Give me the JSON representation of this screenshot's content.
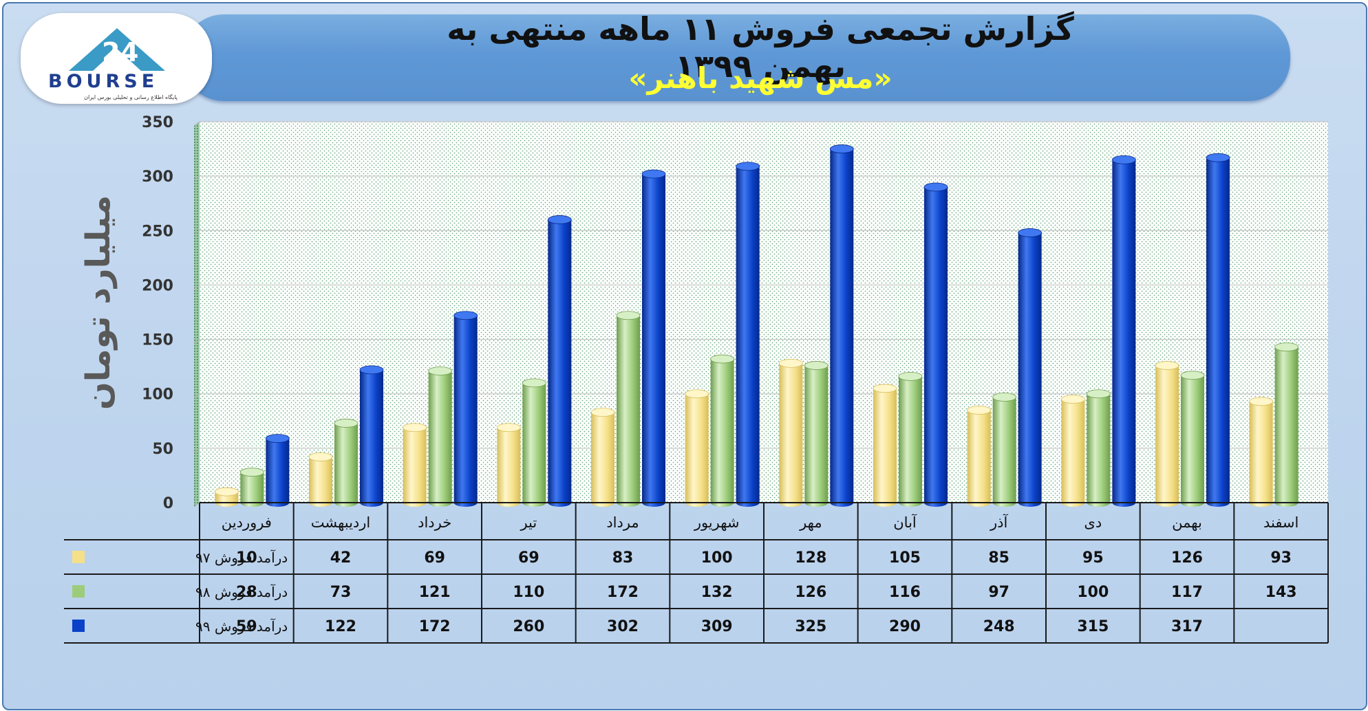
{
  "header": {
    "title": "گزارش تجمعی فروش ۱۱ ماهه منتهی به بهمن ۱۳۹۹",
    "subtitle": "«مس شهید باهنر»"
  },
  "logo": {
    "text": "BOURSE",
    "subtext": "پایگاه اطلاع رسانی و تحلیلی بورس ایران"
  },
  "colors": {
    "series_97": "#f5e089",
    "series_98": "#9ccc7a",
    "series_99": "#0a41c8",
    "table_border": "#1a1a1a"
  },
  "chart_data": {
    "type": "bar",
    "ylabel": "میلیارد تومان",
    "ylim": [
      0,
      350
    ],
    "yticks": [
      0,
      50,
      100,
      150,
      200,
      250,
      300,
      350
    ],
    "grid": true,
    "legend": "table-left",
    "categories": [
      "فروردین",
      "اردیبهشت",
      "خرداد",
      "تیر",
      "مرداد",
      "شهریور",
      "مهر",
      "آبان",
      "آذر",
      "دی",
      "بهمن",
      "اسفند"
    ],
    "series": [
      {
        "name": "درآمد فروش ۹۷",
        "values": [
          10,
          42,
          69,
          69,
          83,
          100,
          128,
          105,
          85,
          95,
          126,
          93
        ]
      },
      {
        "name": "درآمد فروش ۹۸",
        "values": [
          28,
          73,
          121,
          110,
          172,
          132,
          126,
          116,
          97,
          100,
          117,
          143
        ]
      },
      {
        "name": "درآمد فروش ۹۹",
        "values": [
          59,
          122,
          172,
          260,
          302,
          309,
          325,
          290,
          248,
          315,
          317,
          null
        ]
      }
    ]
  }
}
